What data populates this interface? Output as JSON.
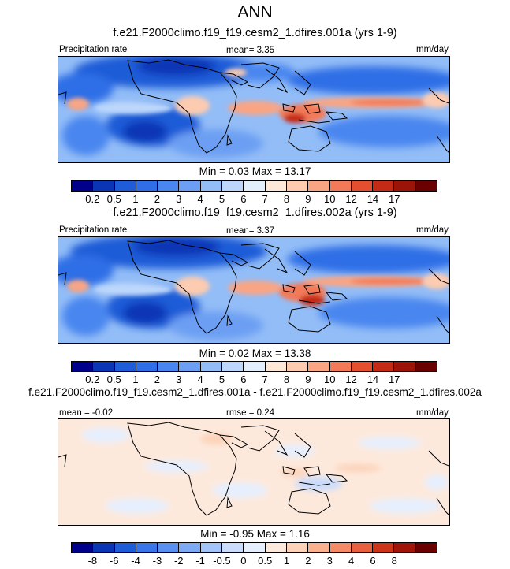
{
  "figure_title": "ANN",
  "colors": {
    "prec_levels": [
      "#00008b",
      "#0a35b5",
      "#1f5cd7",
      "#2f6ee6",
      "#4a86ef",
      "#6c9ff3",
      "#93bdf7",
      "#bcd7fb",
      "#e3eefd",
      "#fde7d6",
      "#fccbb0",
      "#f9a584",
      "#f27a58",
      "#e4502f",
      "#c42b16",
      "#9c1308",
      "#6b0000"
    ],
    "diff_levels": [
      "#00008b",
      "#0a35b5",
      "#1f5cd7",
      "#3a75ea",
      "#5a91f1",
      "#7ea9f5",
      "#a3c4f9",
      "#c9dcfc",
      "#e6effe",
      "#fde9dc",
      "#fcd2b8",
      "#f9b190",
      "#f48a66",
      "#e8603d",
      "#cd3519",
      "#a0140a",
      "#6b0000"
    ]
  },
  "chart_data": [
    {
      "type": "heatmap",
      "title": "f.e21.F2000climo.f19_f19.cesm2_1.dfires.001a (yrs 1-9)",
      "left_label": "Precipitation rate",
      "center_label": "mean=  3.35",
      "right_label": "mm/day",
      "stat_line": "Min =   0.03  Max =  13.17",
      "mean": 3.35,
      "min": 0.03,
      "max": 13.17,
      "colorbar_ticks": [
        "0.2",
        "0.5",
        "1",
        "2",
        "3",
        "4",
        "5",
        "6",
        "7",
        "8",
        "9",
        "10",
        "12",
        "14",
        "17"
      ]
    },
    {
      "type": "heatmap",
      "title": "f.e21.F2000climo.f19_f19.cesm2_1.dfires.002a (yrs 1-9)",
      "left_label": "Precipitation rate",
      "center_label": "mean=  3.37",
      "right_label": "mm/day",
      "stat_line": "Min =   0.02  Max =  13.38",
      "mean": 3.37,
      "min": 0.02,
      "max": 13.38,
      "colorbar_ticks": [
        "0.2",
        "0.5",
        "1",
        "2",
        "3",
        "4",
        "5",
        "6",
        "7",
        "8",
        "9",
        "10",
        "12",
        "14",
        "17"
      ]
    },
    {
      "type": "heatmap",
      "title": "f.e21.F2000climo.f19_f19.cesm2_1.dfires.001a - f.e21.F2000climo.f19_f19.cesm2_1.dfires.002a",
      "left_label": "mean =  -0.02",
      "center_label": "rmse =  0.24",
      "right_label": "mm/day",
      "stat_line": "Min =  -0.95  Max =   1.16",
      "mean": -0.02,
      "rmse": 0.24,
      "min": -0.95,
      "max": 1.16,
      "colorbar_ticks": [
        "-8",
        "-6",
        "-4",
        "-3",
        "-2",
        "-1",
        "-0.5",
        "0",
        "0.5",
        "1",
        "2",
        "3",
        "4",
        "6",
        "8"
      ]
    }
  ]
}
